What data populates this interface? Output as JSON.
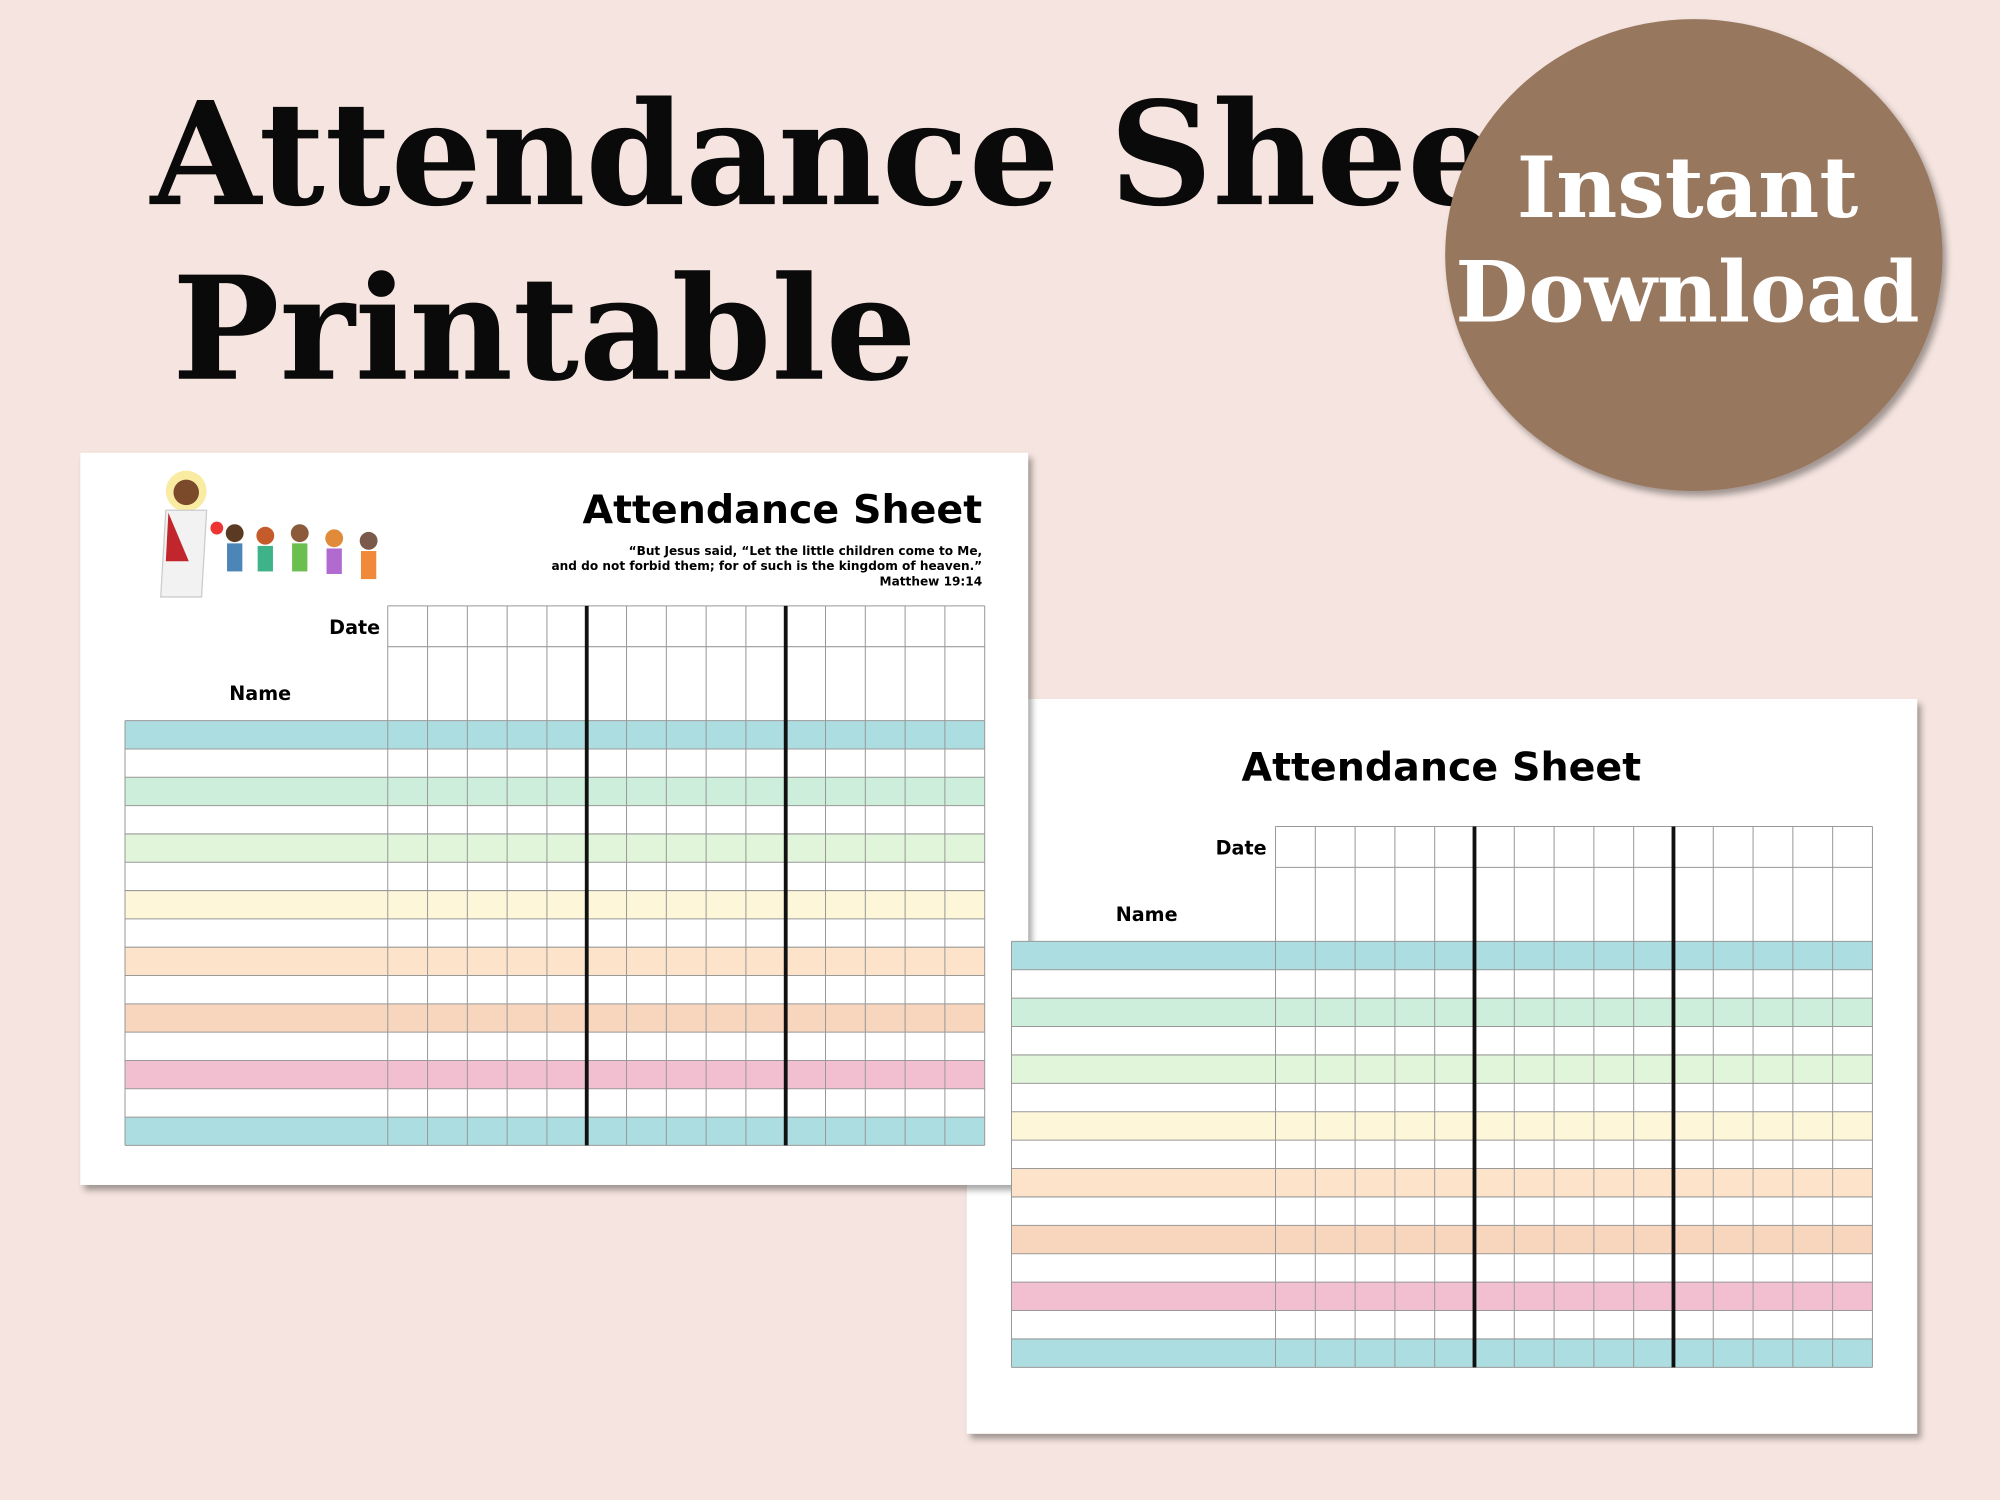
{
  "header": {
    "title_line1": "Attendance Sheet",
    "title_line2": "Printable"
  },
  "badge": {
    "line1": "Instant",
    "line2": "Download"
  },
  "sheets": [
    {
      "title": "Attendance Sheet",
      "quote": [
        "“But Jesus said, “Let the little children come to Me,",
        "and do not forbid them; for of such is the kingdom of heaven.”",
        "Matthew 19:14"
      ],
      "date_label": "Date",
      "name_label": "Name"
    },
    {
      "title": "Attendance Sheet",
      "date_label": "Date",
      "name_label": "Name"
    }
  ]
}
